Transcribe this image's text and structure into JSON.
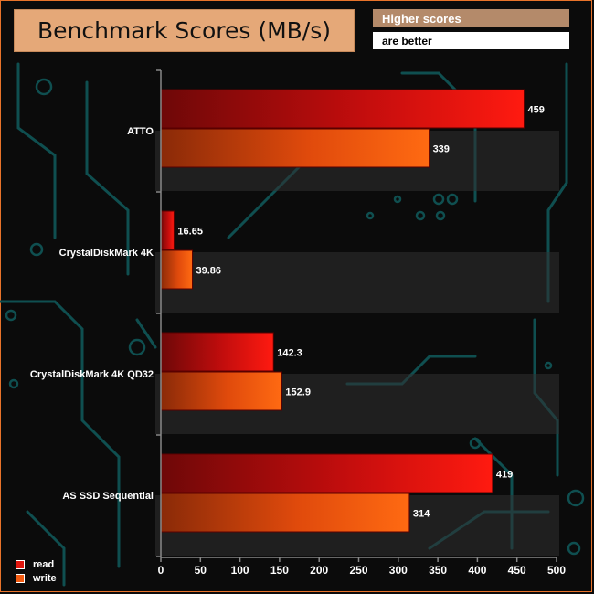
{
  "title": "Benchmark Scores (MB/s)",
  "note_line1": "Higher scores",
  "note_line2": "are better",
  "chart_data": {
    "type": "bar",
    "orientation": "horizontal",
    "categories": [
      "ATTO",
      "CrystalDiskMark 4K",
      "CrystalDiskMark 4K QD32",
      "AS SSD Sequential"
    ],
    "series": [
      {
        "name": "read",
        "values": [
          459,
          16.65,
          142.3,
          419
        ],
        "color": "#e0160e"
      },
      {
        "name": "write",
        "values": [
          339,
          39.86,
          152.9,
          314
        ],
        "color": "#f25a10"
      }
    ],
    "value_labels": [
      [
        "459",
        "16.65",
        "142.3",
        "419"
      ],
      [
        "339",
        "39.86",
        "152.9",
        "314"
      ]
    ],
    "xlim": [
      0,
      500
    ],
    "xticks": [
      0,
      50,
      100,
      150,
      200,
      250,
      300,
      350,
      400,
      450,
      500
    ],
    "grid": false,
    "legend_position": "bottom-left"
  }
}
